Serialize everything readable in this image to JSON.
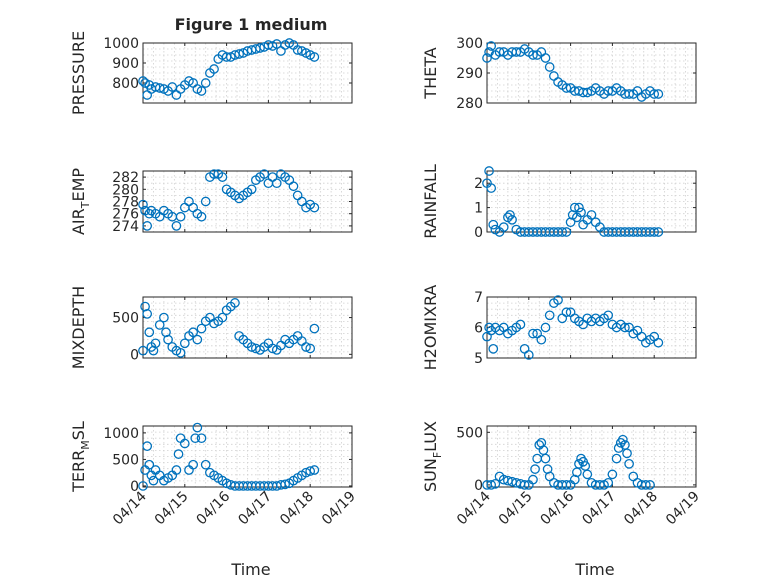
{
  "figure": {
    "title": "Figure 1 medium",
    "marker_color": "#0072BD",
    "grid": "minor-dotted"
  },
  "chart_data": [
    {
      "type": "scatter",
      "ylabel": "PRESSURE",
      "ylim": [
        700,
        1000
      ],
      "yticks": [
        800,
        900,
        1000
      ],
      "xlim": [
        "04/14",
        "04/19"
      ],
      "xticks": [
        "04/14",
        "04/15",
        "04/16",
        "04/17",
        "04/18",
        "04/19"
      ],
      "x": [
        0.0,
        0.05,
        0.1,
        0.15,
        0.2,
        0.3,
        0.4,
        0.5,
        0.6,
        0.7,
        0.8,
        0.9,
        1.0,
        1.1,
        1.2,
        1.3,
        1.4,
        1.5,
        1.6,
        1.7,
        1.8,
        1.9,
        2.0,
        2.1,
        2.2,
        2.3,
        2.4,
        2.5,
        2.6,
        2.7,
        2.8,
        2.9,
        3.0,
        3.1,
        3.2,
        3.3,
        3.4,
        3.5,
        3.6,
        3.7,
        3.8,
        3.9,
        4.0,
        4.1
      ],
      "y": [
        810,
        800,
        740,
        790,
        770,
        780,
        775,
        770,
        760,
        780,
        740,
        770,
        790,
        810,
        800,
        770,
        760,
        800,
        850,
        870,
        920,
        940,
        930,
        930,
        940,
        945,
        950,
        960,
        965,
        970,
        975,
        980,
        990,
        985,
        995,
        960,
        990,
        1000,
        990,
        965,
        960,
        950,
        940,
        930
      ]
    },
    {
      "type": "scatter",
      "ylabel": "THETA",
      "ylim": [
        280,
        300
      ],
      "yticks": [
        280,
        290,
        300
      ],
      "xlim": [
        "04/14",
        "04/19"
      ],
      "xticks": [
        "04/14",
        "04/15",
        "04/16",
        "04/17",
        "04/18",
        "04/19"
      ],
      "x": [
        0.0,
        0.05,
        0.1,
        0.2,
        0.3,
        0.4,
        0.5,
        0.6,
        0.7,
        0.8,
        0.9,
        1.0,
        1.1,
        1.2,
        1.3,
        1.4,
        1.5,
        1.6,
        1.7,
        1.8,
        1.9,
        2.0,
        2.1,
        2.2,
        2.3,
        2.4,
        2.5,
        2.6,
        2.7,
        2.8,
        2.9,
        3.0,
        3.1,
        3.2,
        3.3,
        3.4,
        3.5,
        3.6,
        3.7,
        3.8,
        3.9,
        4.0,
        4.1
      ],
      "y": [
        295,
        297,
        299,
        296,
        297,
        297,
        296,
        297,
        297,
        297,
        298,
        297,
        296,
        296,
        297,
        295,
        292,
        289,
        287,
        286,
        285,
        285,
        284,
        284,
        283.5,
        283.5,
        284,
        285,
        284,
        283,
        284,
        284,
        285,
        284,
        283,
        283,
        283,
        284,
        282,
        283,
        284,
        283,
        283
      ]
    },
    {
      "type": "scatter",
      "ylabel": "AIR_TEMP",
      "ylim": [
        273,
        283
      ],
      "yticks": [
        274,
        276,
        278,
        280,
        282
      ],
      "xlim": [
        "04/14",
        "04/19"
      ],
      "xticks": [
        "04/14",
        "04/15",
        "04/16",
        "04/17",
        "04/18",
        "04/19"
      ],
      "x": [
        0.0,
        0.05,
        0.1,
        0.15,
        0.2,
        0.3,
        0.4,
        0.5,
        0.6,
        0.7,
        0.8,
        0.9,
        1.0,
        1.1,
        1.2,
        1.3,
        1.4,
        1.5,
        1.6,
        1.7,
        1.8,
        1.9,
        2.0,
        2.1,
        2.2,
        2.3,
        2.4,
        2.5,
        2.6,
        2.7,
        2.8,
        2.9,
        3.0,
        3.1,
        3.2,
        3.3,
        3.4,
        3.5,
        3.6,
        3.7,
        3.8,
        3.9,
        4.0,
        4.1
      ],
      "y": [
        277.5,
        276.5,
        274,
        276,
        276.5,
        276,
        275.5,
        276.5,
        276,
        275.5,
        274,
        275.5,
        277,
        278,
        277,
        276,
        275.5,
        278,
        282,
        282.5,
        282.5,
        282,
        280,
        279.5,
        279,
        278.5,
        279,
        279.5,
        280,
        281.5,
        282,
        282.5,
        281,
        282,
        281,
        282.5,
        282,
        281.5,
        280.5,
        279,
        278,
        277,
        277.5,
        277
      ]
    },
    {
      "type": "scatter",
      "ylabel": "RAINFALL",
      "ylim": [
        0,
        2.5
      ],
      "yticks": [
        0,
        1,
        2
      ],
      "xlim": [
        "04/14",
        "04/19"
      ],
      "xticks": [
        "04/14",
        "04/15",
        "04/16",
        "04/17",
        "04/18",
        "04/19"
      ],
      "x": [
        0.0,
        0.05,
        0.1,
        0.15,
        0.2,
        0.3,
        0.4,
        0.5,
        0.55,
        0.6,
        0.7,
        0.8,
        0.9,
        1.0,
        1.1,
        1.2,
        1.3,
        1.4,
        1.5,
        1.6,
        1.7,
        1.8,
        1.9,
        2.0,
        2.05,
        2.1,
        2.15,
        2.2,
        2.25,
        2.3,
        2.4,
        2.5,
        2.6,
        2.7,
        2.8,
        2.9,
        3.0,
        3.1,
        3.2,
        3.3,
        3.4,
        3.5,
        3.6,
        3.7,
        3.8,
        3.9,
        4.0,
        4.1
      ],
      "y": [
        2.0,
        2.5,
        1.8,
        0.3,
        0.1,
        0,
        0.2,
        0.6,
        0.7,
        0.5,
        0.1,
        0,
        0,
        0,
        0,
        0,
        0,
        0,
        0,
        0,
        0,
        0,
        0,
        0.4,
        0.7,
        1.0,
        0.6,
        1.0,
        0.8,
        0.3,
        0.5,
        0.7,
        0.4,
        0.2,
        0,
        0,
        0,
        0,
        0,
        0,
        0,
        0,
        0,
        0,
        0,
        0,
        0,
        0
      ]
    },
    {
      "type": "scatter",
      "ylabel": "MIXDEPTH",
      "ylim": [
        -50,
        780
      ],
      "yticks": [
        0,
        500
      ],
      "xlim": [
        "04/14",
        "04/19"
      ],
      "xticks": [
        "04/14",
        "04/15",
        "04/16",
        "04/17",
        "04/18",
        "04/19"
      ],
      "x": [
        0.0,
        0.05,
        0.1,
        0.15,
        0.2,
        0.25,
        0.3,
        0.4,
        0.5,
        0.55,
        0.6,
        0.7,
        0.8,
        0.9,
        1.0,
        1.1,
        1.2,
        1.3,
        1.4,
        1.5,
        1.6,
        1.7,
        1.8,
        1.9,
        2.0,
        2.1,
        2.2,
        2.3,
        2.4,
        2.5,
        2.6,
        2.7,
        2.8,
        2.9,
        3.0,
        3.1,
        3.2,
        3.3,
        3.4,
        3.5,
        3.6,
        3.7,
        3.8,
        3.9,
        4.0,
        4.1
      ],
      "y": [
        50,
        650,
        550,
        300,
        100,
        50,
        150,
        400,
        500,
        300,
        200,
        100,
        50,
        20,
        150,
        250,
        300,
        200,
        350,
        450,
        500,
        420,
        450,
        500,
        600,
        650,
        700,
        250,
        200,
        150,
        100,
        80,
        60,
        100,
        150,
        80,
        60,
        120,
        200,
        150,
        200,
        250,
        180,
        100,
        80,
        350
      ]
    },
    {
      "type": "scatter",
      "ylabel": "H2OMIXRA",
      "ylim": [
        5,
        7
      ],
      "yticks": [
        5,
        6,
        7
      ],
      "xlim": [
        "04/14",
        "04/19"
      ],
      "xticks": [
        "04/14",
        "04/15",
        "04/16",
        "04/17",
        "04/18",
        "04/19"
      ],
      "x": [
        0.0,
        0.05,
        0.1,
        0.15,
        0.2,
        0.3,
        0.4,
        0.5,
        0.6,
        0.7,
        0.8,
        0.9,
        1.0,
        1.1,
        1.2,
        1.3,
        1.4,
        1.5,
        1.6,
        1.7,
        1.8,
        1.9,
        2.0,
        2.1,
        2.2,
        2.3,
        2.4,
        2.5,
        2.6,
        2.7,
        2.8,
        2.9,
        3.0,
        3.1,
        3.2,
        3.3,
        3.4,
        3.5,
        3.6,
        3.7,
        3.8,
        3.9,
        4.0,
        4.1
      ],
      "y": [
        5.7,
        6.0,
        5.9,
        5.3,
        6.0,
        5.9,
        6.0,
        5.8,
        5.9,
        6.0,
        6.1,
        5.3,
        5.1,
        5.8,
        5.8,
        5.6,
        6.0,
        6.4,
        6.8,
        6.9,
        6.3,
        6.5,
        6.5,
        6.3,
        6.2,
        6.1,
        6.3,
        6.2,
        6.3,
        6.2,
        6.3,
        6.4,
        6.1,
        6.0,
        6.1,
        6.0,
        6.0,
        5.8,
        5.9,
        5.7,
        5.5,
        5.6,
        5.7,
        5.5
      ]
    },
    {
      "type": "scatter",
      "ylabel": "TERR_MSL",
      "ylim": [
        -20,
        1130
      ],
      "yticks": [
        0,
        500,
        1000
      ],
      "xlim": [
        "04/14",
        "04/19"
      ],
      "xticks": [
        "04/14",
        "04/15",
        "04/16",
        "04/17",
        "04/18",
        "04/19"
      ],
      "x": [
        0.0,
        0.05,
        0.1,
        0.15,
        0.2,
        0.25,
        0.3,
        0.4,
        0.5,
        0.6,
        0.7,
        0.8,
        0.85,
        0.9,
        1.0,
        1.1,
        1.2,
        1.25,
        1.3,
        1.4,
        1.5,
        1.6,
        1.7,
        1.8,
        1.9,
        2.0,
        2.1,
        2.2,
        2.3,
        2.4,
        2.5,
        2.6,
        2.7,
        2.8,
        2.9,
        3.0,
        3.1,
        3.2,
        3.3,
        3.4,
        3.5,
        3.6,
        3.7,
        3.8,
        3.9,
        4.0,
        4.1
      ],
      "y": [
        0,
        300,
        750,
        400,
        200,
        100,
        300,
        200,
        100,
        150,
        200,
        300,
        600,
        900,
        800,
        300,
        400,
        900,
        1100,
        900,
        400,
        250,
        200,
        150,
        100,
        50,
        20,
        0,
        0,
        0,
        0,
        0,
        0,
        0,
        0,
        0,
        0,
        0,
        20,
        30,
        50,
        100,
        150,
        200,
        250,
        280,
        300
      ]
    },
    {
      "type": "scatter",
      "ylabel": "SUN_FLUX",
      "ylim": [
        -20,
        560
      ],
      "yticks": [
        0,
        500
      ],
      "xlim": [
        "04/14",
        "04/19"
      ],
      "xticks": [
        "04/14",
        "04/15",
        "04/16",
        "04/17",
        "04/18",
        "04/19"
      ],
      "x": [
        0.0,
        0.1,
        0.2,
        0.3,
        0.4,
        0.5,
        0.6,
        0.7,
        0.8,
        0.9,
        1.0,
        1.1,
        1.15,
        1.2,
        1.25,
        1.3,
        1.35,
        1.4,
        1.45,
        1.5,
        1.6,
        1.7,
        1.8,
        1.9,
        2.0,
        2.1,
        2.15,
        2.2,
        2.25,
        2.3,
        2.35,
        2.4,
        2.5,
        2.6,
        2.7,
        2.8,
        2.9,
        3.0,
        3.1,
        3.15,
        3.2,
        3.25,
        3.3,
        3.35,
        3.4,
        3.5,
        3.6,
        3.7,
        3.8,
        3.9
      ],
      "y": [
        0,
        0,
        10,
        80,
        50,
        40,
        30,
        20,
        10,
        0,
        0,
        50,
        150,
        250,
        380,
        400,
        330,
        250,
        150,
        80,
        20,
        0,
        0,
        0,
        0,
        50,
        120,
        200,
        250,
        220,
        180,
        100,
        20,
        0,
        0,
        0,
        20,
        100,
        250,
        350,
        400,
        430,
        380,
        300,
        200,
        80,
        20,
        0,
        0,
        0
      ]
    }
  ],
  "x_axis_label": "Time"
}
